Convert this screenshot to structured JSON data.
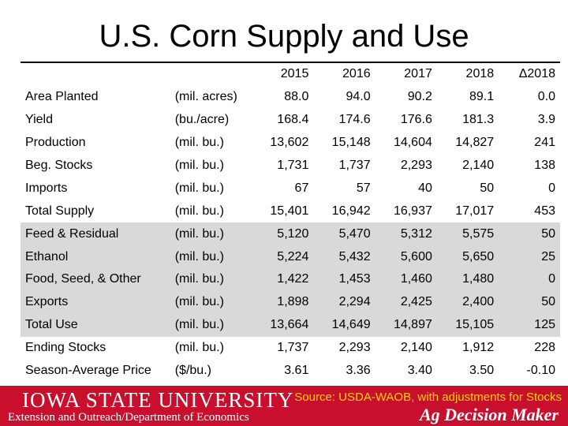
{
  "title": "U.S. Corn Supply and Use",
  "columns": [
    "2015",
    "2016",
    "2017",
    "2018",
    "Δ2018"
  ],
  "rows": [
    {
      "label": "Area Planted",
      "unit": "(mil. acres)",
      "values": [
        "88.0",
        "94.0",
        "90.2",
        "89.1",
        "0.0"
      ],
      "shaded": false
    },
    {
      "label": "Yield",
      "unit": "(bu./acre)",
      "values": [
        "168.4",
        "174.6",
        "176.6",
        "181.3",
        "3.9"
      ],
      "shaded": false
    },
    {
      "label": "Production",
      "unit": "(mil. bu.)",
      "values": [
        "13,602",
        "15,148",
        "14,604",
        "14,827",
        "241"
      ],
      "shaded": false
    },
    {
      "label": "Beg. Stocks",
      "unit": "(mil. bu.)",
      "values": [
        "1,731",
        "1,737",
        "2,293",
        "2,140",
        "138"
      ],
      "shaded": false
    },
    {
      "label": "Imports",
      "unit": "(mil. bu.)",
      "values": [
        "67",
        "57",
        "40",
        "50",
        "0"
      ],
      "shaded": false
    },
    {
      "label": "Total Supply",
      "unit": "(mil. bu.)",
      "values": [
        "15,401",
        "16,942",
        "16,937",
        "17,017",
        "453"
      ],
      "shaded": false
    },
    {
      "label": "Feed & Residual",
      "unit": "(mil. bu.)",
      "values": [
        "5,120",
        "5,470",
        "5,312",
        "5,575",
        "50"
      ],
      "shaded": true
    },
    {
      "label": "Ethanol",
      "unit": "(mil. bu.)",
      "values": [
        "5,224",
        "5,432",
        "5,600",
        "5,650",
        "25"
      ],
      "shaded": true
    },
    {
      "label": "Food, Seed, & Other",
      "unit": "(mil. bu.)",
      "values": [
        "1,422",
        "1,453",
        "1,460",
        "1,480",
        "0"
      ],
      "shaded": true
    },
    {
      "label": "Exports",
      "unit": "(mil. bu.)",
      "values": [
        "1,898",
        "2,294",
        "2,425",
        "2,400",
        "50"
      ],
      "shaded": true
    },
    {
      "label": "Total Use",
      "unit": "(mil. bu.)",
      "values": [
        "13,664",
        "14,649",
        "14,897",
        "15,105",
        "125"
      ],
      "shaded": true
    },
    {
      "label": "Ending Stocks",
      "unit": "(mil. bu.)",
      "values": [
        "1,737",
        "2,293",
        "2,140",
        "1,912",
        "228"
      ],
      "shaded": false
    },
    {
      "label": "Season-Average Price",
      "unit": "($/bu.)",
      "values": [
        "3.61",
        "3.36",
        "3.40",
        "3.50",
        "-0.10"
      ],
      "shaded": false
    }
  ],
  "footer": {
    "university": "IOWA STATE UNIVERSITY",
    "department": "Extension and Outreach/Department of Economics",
    "source": "Source: USDA-WAOB, with adjustments for Stocks",
    "brand": "Ag Decision Maker",
    "bar_color": "#c8102e",
    "source_color": "#ffd200"
  }
}
